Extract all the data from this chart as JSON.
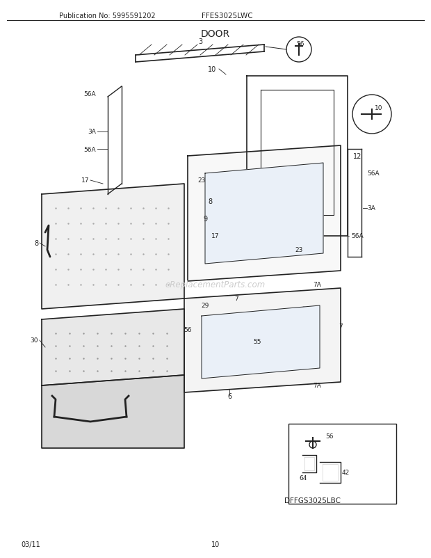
{
  "title": "DOOR",
  "pub_no": "Publication No: 5995591202",
  "model": "FFES3025LWC",
  "diagram_ref": "DFFGS3025LBC",
  "date": "03/11",
  "page": "10",
  "watermark": "eReplacementParts.com",
  "bg_color": "#ffffff",
  "line_color": "#222222",
  "fig_width": 6.2,
  "fig_height": 8.03,
  "dpi": 100
}
